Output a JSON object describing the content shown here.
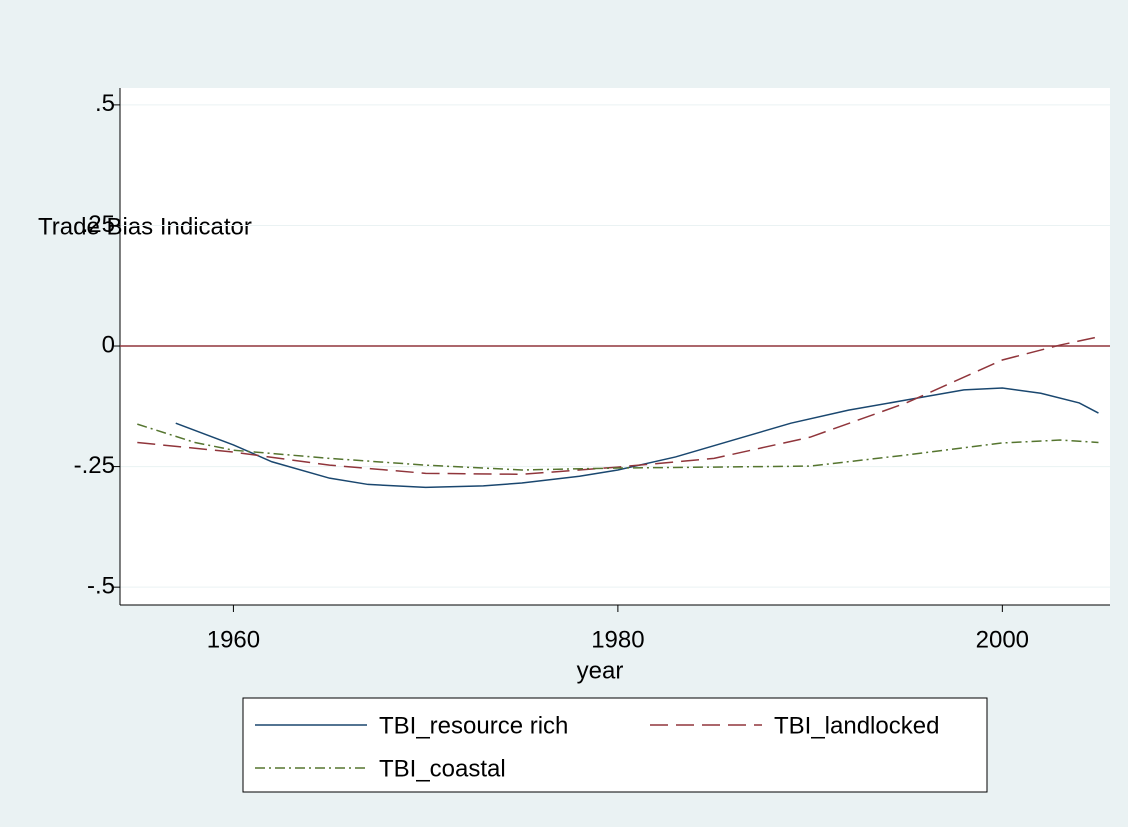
{
  "chart_data": {
    "type": "line",
    "ylabel": "Trade Bias Indicator",
    "xlabel": "year",
    "xlim": [
      1954.1,
      2005.6
    ],
    "xticks": [
      1960,
      1980,
      2000
    ],
    "ylim": [
      -0.537,
      0.535
    ],
    "yticks": [
      {
        "value": 0.5,
        "label": ".5"
      },
      {
        "value": 0.25,
        "label": ".25"
      },
      0,
      {
        "value": -0.25,
        "label": "-.25"
      },
      {
        "value": -0.5,
        "label": "-.5"
      }
    ],
    "grid": true,
    "yline": 0,
    "yline_color": "#90353b",
    "series": [
      {
        "name": "TBI_resource rich",
        "color": "#1a476f",
        "dash": "none",
        "x": [
          1957,
          1960,
          1962,
          1965,
          1967,
          1970,
          1973,
          1975,
          1978,
          1980,
          1983,
          1986,
          1989,
          1992,
          1995,
          1998,
          2000,
          2002,
          2004,
          2005
        ],
        "values": [
          -0.16,
          -0.205,
          -0.24,
          -0.274,
          -0.287,
          -0.293,
          -0.29,
          -0.284,
          -0.27,
          -0.257,
          -0.23,
          -0.195,
          -0.16,
          -0.133,
          -0.112,
          -0.091,
          -0.087,
          -0.098,
          -0.118,
          -0.139
        ]
      },
      {
        "name": "TBI_landlocked",
        "color": "#90353b",
        "dash": "18 8",
        "x": [
          1955,
          1960,
          1965,
          1970,
          1975,
          1980,
          1985,
          1990,
          1995,
          2000,
          2003,
          2005
        ],
        "values": [
          -0.2,
          -0.22,
          -0.247,
          -0.264,
          -0.266,
          -0.251,
          -0.233,
          -0.189,
          -0.118,
          -0.029,
          0.002,
          0.019
        ]
      },
      {
        "name": "TBI_coastal",
        "color": "#55752f",
        "dash": "10 4 2 4",
        "x": [
          1955,
          1958,
          1960,
          1965,
          1970,
          1975,
          1980,
          1985,
          1990,
          1995,
          2000,
          2003,
          2005
        ],
        "values": [
          -0.162,
          -0.2,
          -0.216,
          -0.233,
          -0.247,
          -0.257,
          -0.253,
          -0.251,
          -0.249,
          -0.226,
          -0.201,
          -0.195,
          -0.2
        ]
      }
    ]
  }
}
